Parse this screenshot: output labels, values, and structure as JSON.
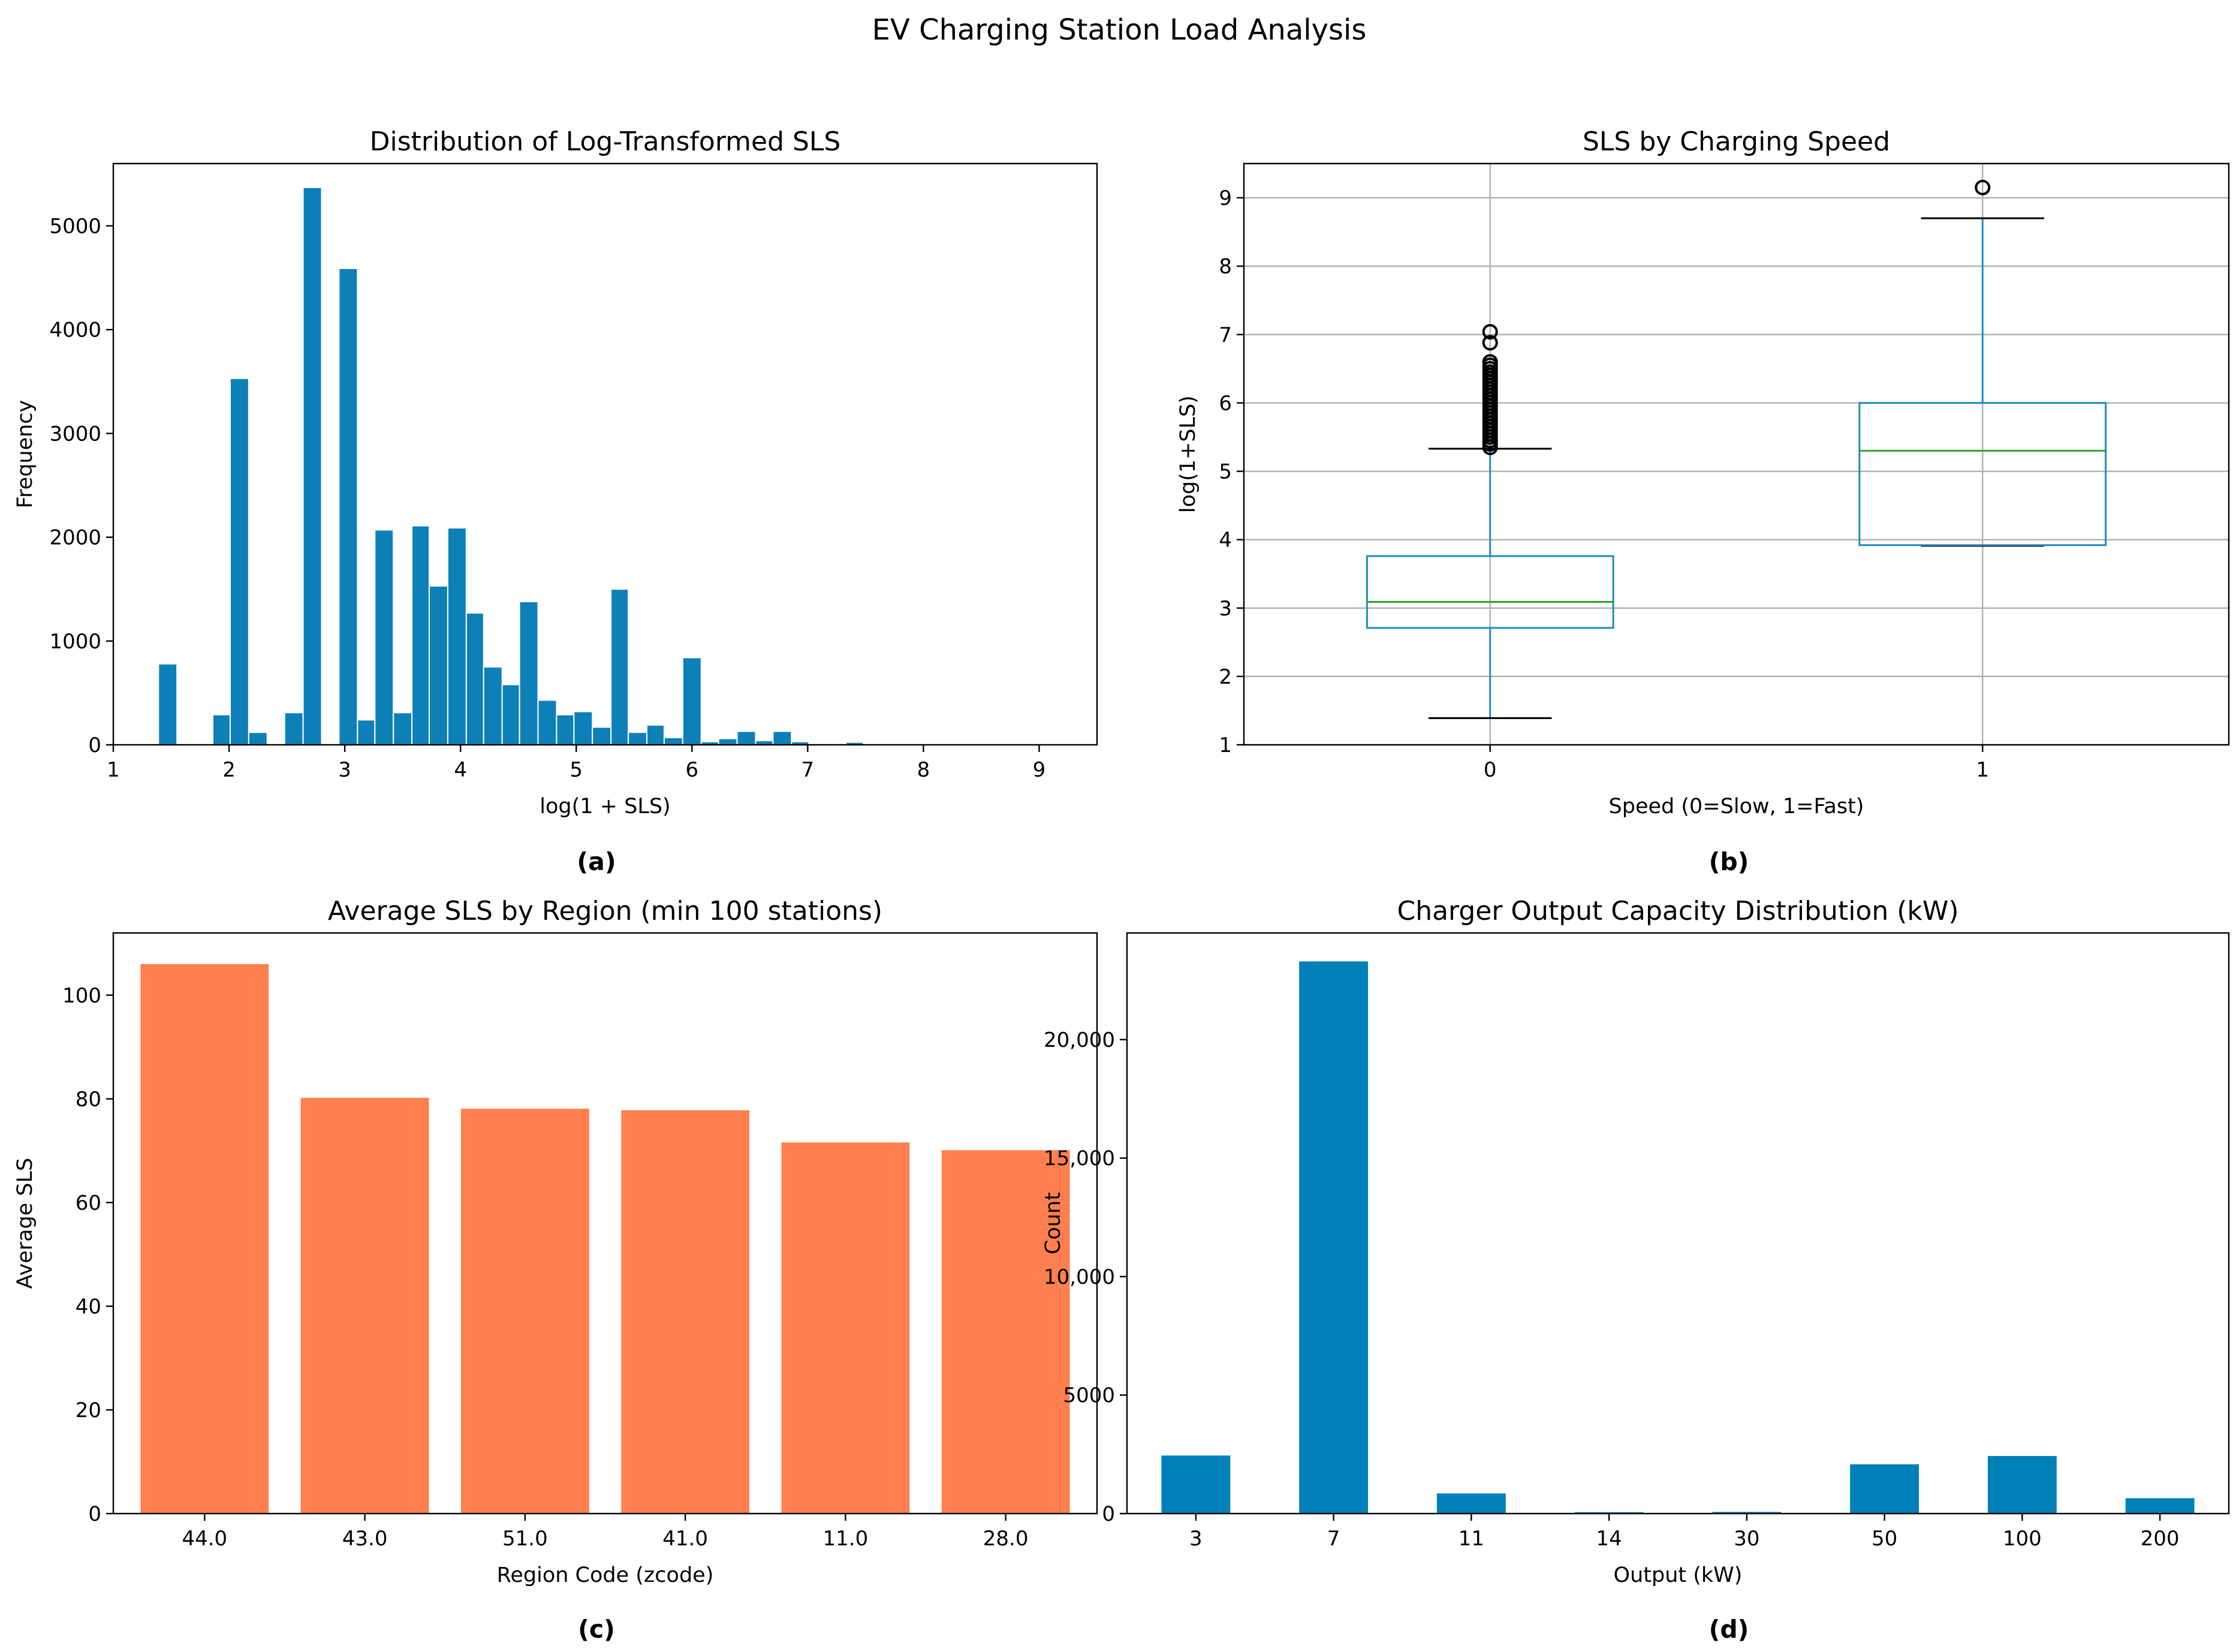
{
  "figure": {
    "title": "EV Charging Station Load Analysis",
    "panel_labels": [
      "(a)",
      "(b)",
      "(c)",
      "(d)"
    ]
  },
  "colors": {
    "hist_bar": "#0e80b8",
    "hist_edge": "#ffffff",
    "box": "#1f8bc0",
    "median": "#2ca02c",
    "region_bar": "#ff7f4f",
    "capacity_bar": "#0080b8",
    "grid": "#b0b0b0"
  },
  "chart_data": [
    {
      "type": "histogram",
      "title": "Distribution of Log-Transformed SLS",
      "xlabel": "log(1 + SLS)",
      "ylabel": "Frequency",
      "xlim": [
        1,
        9.5
      ],
      "ylim": [
        0,
        5600
      ],
      "xticks": [
        1,
        2,
        3,
        4,
        5,
        6,
        7,
        8,
        9
      ],
      "yticks": [
        0,
        1000,
        2000,
        3000,
        4000,
        5000
      ],
      "grid": false,
      "bins": [
        {
          "x0": 1.39,
          "x1": 1.55,
          "count": 780
        },
        {
          "x0": 1.86,
          "x1": 2.01,
          "count": 290
        },
        {
          "x0": 2.01,
          "x1": 2.17,
          "count": 3530
        },
        {
          "x0": 2.17,
          "x1": 2.33,
          "count": 120
        },
        {
          "x0": 2.48,
          "x1": 2.64,
          "count": 310
        },
        {
          "x0": 2.64,
          "x1": 2.8,
          "count": 5370
        },
        {
          "x0": 2.8,
          "x1": 2.95,
          "count": 0
        },
        {
          "x0": 2.95,
          "x1": 3.11,
          "count": 4590
        },
        {
          "x0": 3.11,
          "x1": 3.26,
          "count": 240
        },
        {
          "x0": 3.26,
          "x1": 3.42,
          "count": 2070
        },
        {
          "x0": 3.42,
          "x1": 3.58,
          "count": 310
        },
        {
          "x0": 3.58,
          "x1": 3.73,
          "count": 2110
        },
        {
          "x0": 3.73,
          "x1": 3.89,
          "count": 1530
        },
        {
          "x0": 3.89,
          "x1": 4.05,
          "count": 2090
        },
        {
          "x0": 4.05,
          "x1": 4.2,
          "count": 1270
        },
        {
          "x0": 4.2,
          "x1": 4.36,
          "count": 750
        },
        {
          "x0": 4.36,
          "x1": 4.51,
          "count": 580
        },
        {
          "x0": 4.51,
          "x1": 4.67,
          "count": 1380
        },
        {
          "x0": 4.67,
          "x1": 4.83,
          "count": 430
        },
        {
          "x0": 4.83,
          "x1": 4.98,
          "count": 290
        },
        {
          "x0": 4.98,
          "x1": 5.14,
          "count": 320
        },
        {
          "x0": 5.14,
          "x1": 5.3,
          "count": 170
        },
        {
          "x0": 5.3,
          "x1": 5.45,
          "count": 1500
        },
        {
          "x0": 5.45,
          "x1": 5.61,
          "count": 120
        },
        {
          "x0": 5.61,
          "x1": 5.76,
          "count": 190
        },
        {
          "x0": 5.76,
          "x1": 5.92,
          "count": 70
        },
        {
          "x0": 5.92,
          "x1": 6.08,
          "count": 840
        },
        {
          "x0": 6.08,
          "x1": 6.23,
          "count": 30
        },
        {
          "x0": 6.23,
          "x1": 6.39,
          "count": 60
        },
        {
          "x0": 6.39,
          "x1": 6.55,
          "count": 130
        },
        {
          "x0": 6.55,
          "x1": 6.7,
          "count": 40
        },
        {
          "x0": 6.7,
          "x1": 6.86,
          "count": 130
        },
        {
          "x0": 6.86,
          "x1": 7.01,
          "count": 30
        },
        {
          "x0": 7.01,
          "x1": 7.17,
          "count": 12
        },
        {
          "x0": 7.17,
          "x1": 7.33,
          "count": 8
        },
        {
          "x0": 7.33,
          "x1": 7.48,
          "count": 25
        },
        {
          "x0": 7.48,
          "x1": 7.64,
          "count": 6
        },
        {
          "x0": 7.64,
          "x1": 7.8,
          "count": 5
        },
        {
          "x0": 7.8,
          "x1": 7.95,
          "count": 4
        },
        {
          "x0": 7.95,
          "x1": 8.11,
          "count": 3
        },
        {
          "x0": 8.11,
          "x1": 8.26,
          "count": 2
        },
        {
          "x0": 8.26,
          "x1": 8.42,
          "count": 2
        },
        {
          "x0": 8.42,
          "x1": 8.58,
          "count": 2
        },
        {
          "x0": 8.58,
          "x1": 8.73,
          "count": 1
        },
        {
          "x0": 8.73,
          "x1": 8.89,
          "count": 1
        },
        {
          "x0": 8.89,
          "x1": 9.04,
          "count": 1
        },
        {
          "x0": 9.04,
          "x1": 9.2,
          "count": 1
        }
      ]
    },
    {
      "type": "box",
      "title": "SLS by Charging Speed",
      "xlabel": "Speed (0=Slow, 1=Fast)",
      "ylabel": "log(1+SLS)",
      "categories": [
        "0",
        "1"
      ],
      "ylim": [
        1,
        9.5
      ],
      "yticks": [
        1,
        2,
        3,
        4,
        5,
        6,
        7,
        8,
        9
      ],
      "grid": true,
      "boxes": [
        {
          "category": "0",
          "whisker_low": 1.39,
          "q1": 2.71,
          "median": 3.09,
          "q3": 3.76,
          "whisker_high": 5.33,
          "outliers": [
            5.35,
            5.4,
            5.45,
            5.5,
            5.55,
            5.6,
            5.65,
            5.7,
            5.75,
            5.8,
            5.85,
            5.9,
            5.95,
            6.0,
            6.05,
            6.1,
            6.15,
            6.2,
            6.25,
            6.3,
            6.35,
            6.4,
            6.45,
            6.5,
            6.55,
            6.6,
            6.88,
            7.04
          ]
        },
        {
          "category": "1",
          "whisker_low": 3.91,
          "q1": 3.92,
          "median": 5.3,
          "q3": 6.0,
          "whisker_high": 8.7,
          "outliers": [
            9.15
          ]
        }
      ]
    },
    {
      "type": "bar",
      "title": "Average SLS by Region (min 100 stations)",
      "xlabel": "Region Code (zcode)",
      "ylabel": "Average SLS",
      "categories": [
        "44.0",
        "43.0",
        "51.0",
        "41.0",
        "11.0",
        "28.0"
      ],
      "values": [
        106,
        80.2,
        78.1,
        77.8,
        71.6,
        70.1
      ],
      "ylim": [
        0,
        112
      ],
      "yticks": [
        0,
        20,
        40,
        60,
        80,
        100
      ],
      "grid": false
    },
    {
      "type": "bar",
      "title": "Charger Output Capacity Distribution (kW)",
      "xlabel": "Output (kW)",
      "ylabel": "Count",
      "categories": [
        "3",
        "7",
        "11",
        "14",
        "30",
        "50",
        "100",
        "200"
      ],
      "values": [
        2450,
        23300,
        850,
        60,
        70,
        2080,
        2430,
        650
      ],
      "ylim": [
        0,
        24500
      ],
      "yticks": [
        0,
        5000,
        10000,
        15000,
        20000
      ],
      "ytick_labels": [
        "0",
        "5000",
        "10,000",
        "15,000",
        "20,000"
      ],
      "grid": false
    }
  ]
}
